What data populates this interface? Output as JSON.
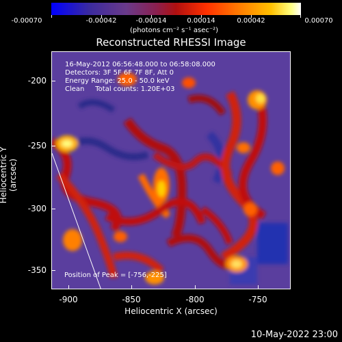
{
  "colorbar": {
    "ticks": [
      "-0.00070",
      "-0.00042",
      "-0.00014",
      "0.00014",
      "0.00042",
      "0.00070"
    ],
    "units": "(photons cm⁻² s⁻¹ asec⁻²)"
  },
  "title": "Reconstructed RHESSI Image",
  "annotation": {
    "line1": "16-May-2012 06:56:48.000 to 06:58:08.000",
    "line2": "Detectors: 3F 5F 6F 7F 8F, Att 0",
    "line3": "Energy Range: 25.0 - 50.0 keV",
    "line4": "Clean     Total counts: 1.20E+03",
    "peak": "Position of Peak = [-756,-225]"
  },
  "axes": {
    "x_label": "Heliocentric X (arcsec)",
    "y_label": "Heliocentric Y (arcsec)",
    "x_ticks": [
      "-900",
      "-850",
      "-800",
      "-750"
    ],
    "y_ticks": [
      "-200",
      "-250",
      "-300",
      "-350"
    ]
  },
  "timestamp": "10-May-2022 23:00"
}
